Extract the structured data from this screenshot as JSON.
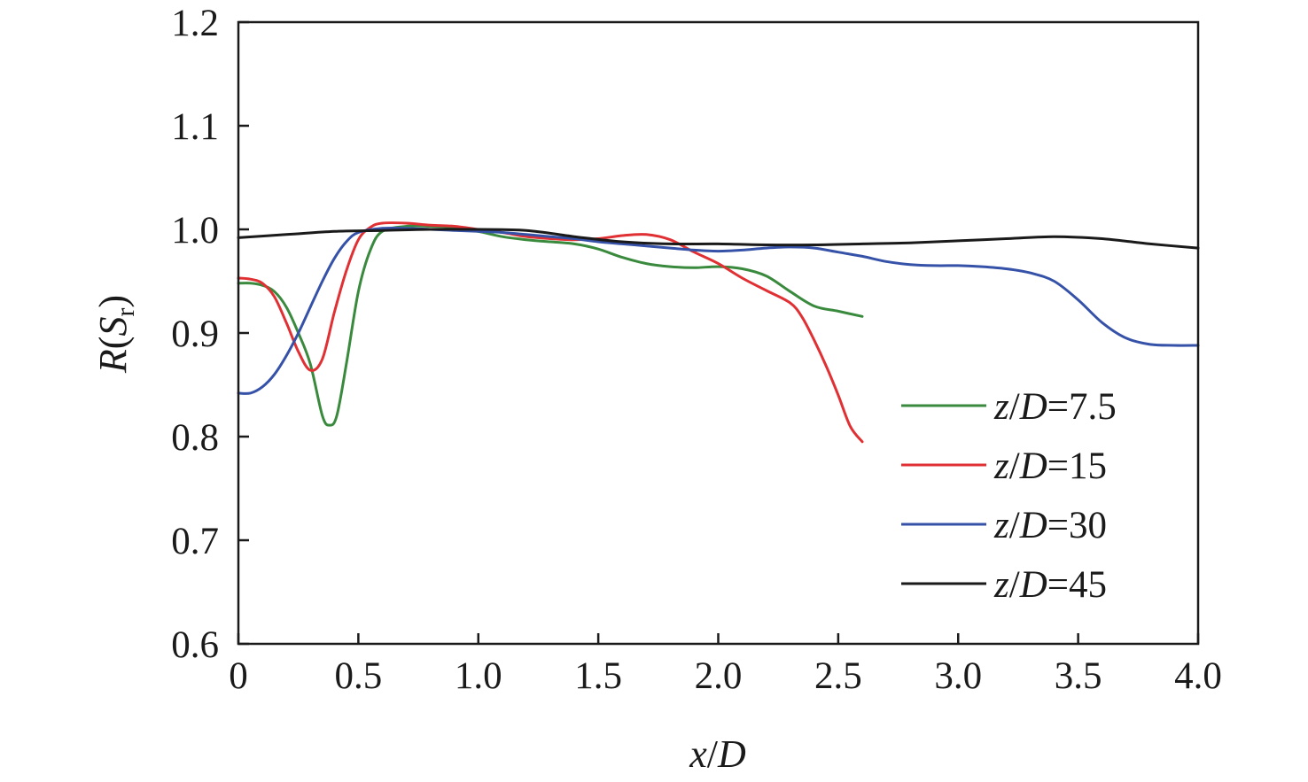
{
  "chart_data": {
    "type": "line",
    "title": "",
    "xlabel": {
      "var": "x",
      "sep": "/",
      "ref": "D"
    },
    "ylabel": {
      "func": "R",
      "open": "(",
      "sym": "S",
      "sub": "r",
      "close": ")"
    },
    "xlim": [
      0,
      4.0
    ],
    "ylim": [
      0.6,
      1.2
    ],
    "xticks": [
      0,
      0.5,
      1.0,
      1.5,
      2.0,
      2.5,
      3.0,
      3.5,
      4.0
    ],
    "xtick_labels": [
      "0",
      "0.5",
      "1.0",
      "1.5",
      "2.0",
      "2.5",
      "3.0",
      "3.5",
      "4.0"
    ],
    "yticks": [
      0.6,
      0.7,
      0.8,
      0.9,
      1.0,
      1.1,
      1.2
    ],
    "ytick_labels": [
      "0.6",
      "0.7",
      "0.8",
      "0.9",
      "1.0",
      "1.1",
      "1.2"
    ],
    "grid": false,
    "legend_position": "lower-right",
    "series": [
      {
        "name": "z/D=7.5",
        "label": {
          "var": "z",
          "sep": "/",
          "ref": "D",
          "eq": "=7.5"
        },
        "color": "#3a8a3e",
        "points": [
          [
            0.0,
            0.948
          ],
          [
            0.05,
            0.948
          ],
          [
            0.1,
            0.946
          ],
          [
            0.15,
            0.94
          ],
          [
            0.2,
            0.925
          ],
          [
            0.25,
            0.9
          ],
          [
            0.3,
            0.87
          ],
          [
            0.35,
            0.82
          ],
          [
            0.38,
            0.811
          ],
          [
            0.41,
            0.82
          ],
          [
            0.45,
            0.87
          ],
          [
            0.5,
            0.94
          ],
          [
            0.55,
            0.98
          ],
          [
            0.6,
            0.998
          ],
          [
            0.7,
            1.003
          ],
          [
            0.8,
            1.003
          ],
          [
            0.9,
            1.002
          ],
          [
            1.0,
            0.998
          ],
          [
            1.1,
            0.993
          ],
          [
            1.2,
            0.99
          ],
          [
            1.3,
            0.988
          ],
          [
            1.4,
            0.986
          ],
          [
            1.5,
            0.981
          ],
          [
            1.6,
            0.973
          ],
          [
            1.7,
            0.967
          ],
          [
            1.8,
            0.964
          ],
          [
            1.9,
            0.963
          ],
          [
            2.0,
            0.964
          ],
          [
            2.1,
            0.962
          ],
          [
            2.2,
            0.955
          ],
          [
            2.3,
            0.94
          ],
          [
            2.4,
            0.926
          ],
          [
            2.5,
            0.921
          ],
          [
            2.6,
            0.916
          ]
        ]
      },
      {
        "name": "z/D=15",
        "label": {
          "var": "z",
          "sep": "/",
          "ref": "D",
          "eq": "=15"
        },
        "color": "#e03033",
        "points": [
          [
            0.0,
            0.953
          ],
          [
            0.05,
            0.952
          ],
          [
            0.1,
            0.948
          ],
          [
            0.15,
            0.935
          ],
          [
            0.2,
            0.91
          ],
          [
            0.25,
            0.882
          ],
          [
            0.3,
            0.864
          ],
          [
            0.35,
            0.875
          ],
          [
            0.4,
            0.92
          ],
          [
            0.45,
            0.96
          ],
          [
            0.5,
            0.99
          ],
          [
            0.55,
            1.002
          ],
          [
            0.6,
            1.006
          ],
          [
            0.7,
            1.006
          ],
          [
            0.8,
            1.004
          ],
          [
            0.9,
            1.003
          ],
          [
            1.0,
            1.0
          ],
          [
            1.1,
            0.997
          ],
          [
            1.2,
            0.993
          ],
          [
            1.3,
            0.991
          ],
          [
            1.4,
            0.99
          ],
          [
            1.5,
            0.991
          ],
          [
            1.6,
            0.994
          ],
          [
            1.7,
            0.995
          ],
          [
            1.8,
            0.99
          ],
          [
            1.9,
            0.978
          ],
          [
            2.0,
            0.967
          ],
          [
            2.1,
            0.953
          ],
          [
            2.2,
            0.941
          ],
          [
            2.3,
            0.929
          ],
          [
            2.35,
            0.915
          ],
          [
            2.4,
            0.893
          ],
          [
            2.45,
            0.868
          ],
          [
            2.5,
            0.84
          ],
          [
            2.55,
            0.81
          ],
          [
            2.6,
            0.795
          ]
        ]
      },
      {
        "name": "z/D=30",
        "label": {
          "var": "z",
          "sep": "/",
          "ref": "D",
          "eq": "=30"
        },
        "color": "#3552a8",
        "points": [
          [
            0.0,
            0.842
          ],
          [
            0.05,
            0.842
          ],
          [
            0.1,
            0.848
          ],
          [
            0.15,
            0.86
          ],
          [
            0.2,
            0.878
          ],
          [
            0.25,
            0.9
          ],
          [
            0.3,
            0.925
          ],
          [
            0.35,
            0.95
          ],
          [
            0.4,
            0.972
          ],
          [
            0.45,
            0.988
          ],
          [
            0.5,
            0.997
          ],
          [
            0.6,
            1.001
          ],
          [
            0.7,
            1.001
          ],
          [
            0.8,
            1.0
          ],
          [
            0.9,
            0.999
          ],
          [
            1.0,
            0.998
          ],
          [
            1.1,
            0.997
          ],
          [
            1.2,
            0.995
          ],
          [
            1.3,
            0.993
          ],
          [
            1.4,
            0.991
          ],
          [
            1.5,
            0.988
          ],
          [
            1.6,
            0.986
          ],
          [
            1.7,
            0.984
          ],
          [
            1.8,
            0.982
          ],
          [
            1.9,
            0.98
          ],
          [
            2.0,
            0.979
          ],
          [
            2.1,
            0.98
          ],
          [
            2.2,
            0.982
          ],
          [
            2.3,
            0.983
          ],
          [
            2.4,
            0.982
          ],
          [
            2.5,
            0.978
          ],
          [
            2.6,
            0.974
          ],
          [
            2.7,
            0.969
          ],
          [
            2.8,
            0.966
          ],
          [
            2.9,
            0.965
          ],
          [
            3.0,
            0.965
          ],
          [
            3.1,
            0.964
          ],
          [
            3.2,
            0.962
          ],
          [
            3.3,
            0.958
          ],
          [
            3.4,
            0.95
          ],
          [
            3.5,
            0.932
          ],
          [
            3.6,
            0.91
          ],
          [
            3.7,
            0.895
          ],
          [
            3.8,
            0.889
          ],
          [
            3.9,
            0.888
          ],
          [
            4.0,
            0.888
          ]
        ]
      },
      {
        "name": "z/D=45",
        "label": {
          "var": "z",
          "sep": "/",
          "ref": "D",
          "eq": "=45"
        },
        "color": "#1a1a1a",
        "points": [
          [
            0.0,
            0.992
          ],
          [
            0.2,
            0.995
          ],
          [
            0.4,
            0.998
          ],
          [
            0.6,
            0.999
          ],
          [
            0.8,
            1.0
          ],
          [
            1.0,
            1.0
          ],
          [
            1.2,
            0.999
          ],
          [
            1.4,
            0.993
          ],
          [
            1.6,
            0.988
          ],
          [
            1.8,
            0.986
          ],
          [
            2.0,
            0.986
          ],
          [
            2.2,
            0.985
          ],
          [
            2.4,
            0.985
          ],
          [
            2.6,
            0.986
          ],
          [
            2.8,
            0.987
          ],
          [
            3.0,
            0.989
          ],
          [
            3.2,
            0.991
          ],
          [
            3.4,
            0.993
          ],
          [
            3.6,
            0.991
          ],
          [
            3.8,
            0.986
          ],
          [
            4.0,
            0.982
          ]
        ]
      }
    ]
  }
}
